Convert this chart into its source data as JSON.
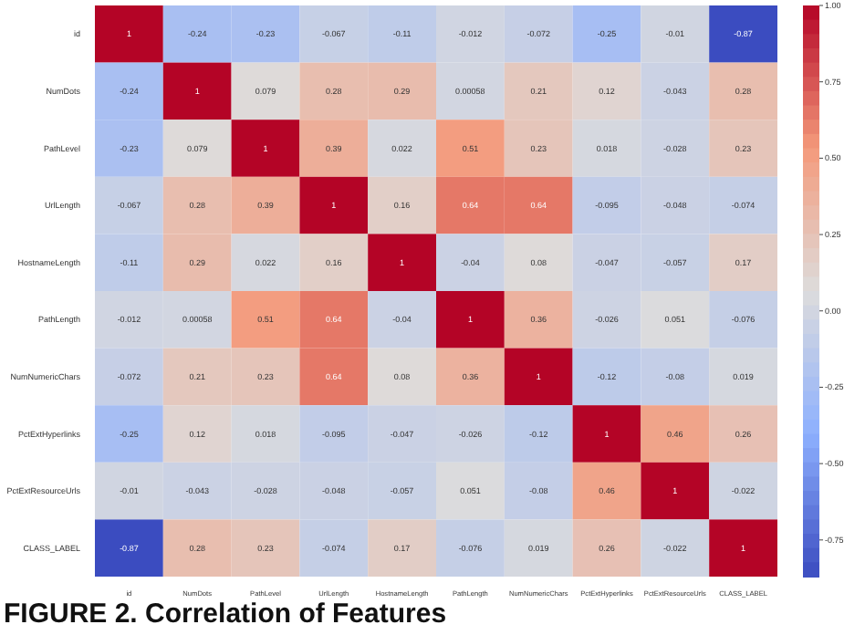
{
  "chart_data": {
    "type": "heatmap",
    "title": "FIGURE 2. Correlation of Features",
    "categories": [
      "id",
      "NumDots",
      "PathLevel",
      "UrlLength",
      "HostnameLength",
      "PathLength",
      "NumNumericChars",
      "PctExtHyperlinks",
      "PctExtResourceUrls",
      "CLASS_LABEL"
    ],
    "y_categories": [
      "id",
      "NumDots",
      "PathLevel",
      "UrlLength",
      "HostnameLength",
      "PathLength",
      "NumNumericChars",
      "PctExtHyperlinks",
      "PctExtResourceUrls",
      "CLASS_LABEL"
    ],
    "cells": [
      [
        1,
        -0.24,
        -0.23,
        -0.067,
        -0.11,
        -0.012,
        -0.072,
        -0.25,
        -0.01,
        -0.87
      ],
      [
        -0.24,
        1,
        0.079,
        0.28,
        0.29,
        0.00058,
        0.21,
        0.12,
        -0.043,
        0.28
      ],
      [
        -0.23,
        0.079,
        1,
        0.39,
        0.022,
        0.51,
        0.23,
        0.018,
        -0.028,
        0.23
      ],
      [
        -0.067,
        0.28,
        0.39,
        1,
        0.16,
        0.64,
        0.64,
        -0.095,
        -0.048,
        -0.074
      ],
      [
        -0.11,
        0.29,
        0.022,
        0.16,
        1,
        -0.04,
        0.08,
        -0.047,
        -0.057,
        0.17
      ],
      [
        -0.012,
        0.00058,
        0.51,
        0.64,
        -0.04,
        1,
        0.36,
        -0.026,
        0.051,
        -0.076
      ],
      [
        -0.072,
        0.21,
        0.23,
        0.64,
        0.08,
        0.36,
        1,
        -0.12,
        -0.08,
        0.019
      ],
      [
        -0.25,
        0.12,
        0.018,
        -0.095,
        -0.047,
        -0.026,
        -0.12,
        1,
        0.46,
        0.26
      ],
      [
        -0.01,
        -0.043,
        -0.028,
        -0.048,
        -0.057,
        0.051,
        -0.08,
        0.46,
        1,
        -0.022
      ],
      [
        -0.87,
        0.28,
        0.23,
        -0.074,
        0.17,
        -0.076,
        0.019,
        0.26,
        -0.022,
        1
      ]
    ],
    "clim": [
      -0.87,
      1
    ],
    "cticks": [
      {
        "value": 1,
        "label": "1.00"
      },
      {
        "value": 0.75,
        "label": "0.75"
      },
      {
        "value": 0.5,
        "label": "0.50"
      },
      {
        "value": 0.25,
        "label": "0.25"
      },
      {
        "value": 0,
        "label": "0.00"
      },
      {
        "value": -0.25,
        "label": "-0.25"
      },
      {
        "value": -0.5,
        "label": "-0.50"
      },
      {
        "value": -0.75,
        "label": "-0.75"
      }
    ],
    "data_labels": true
  }
}
